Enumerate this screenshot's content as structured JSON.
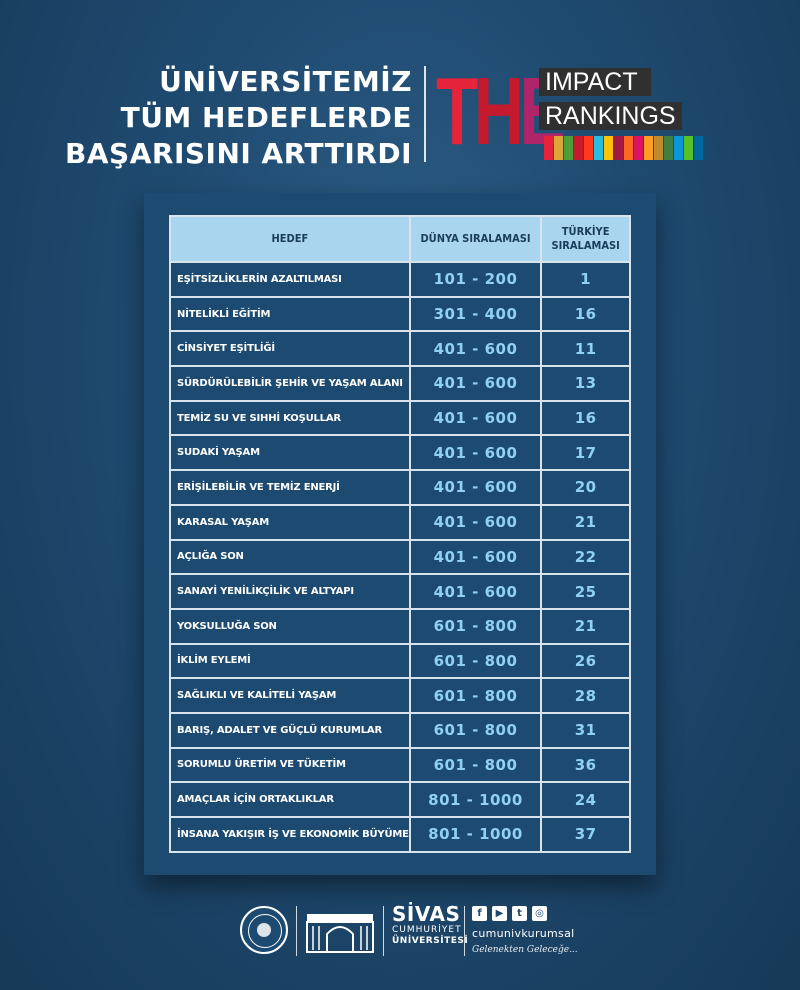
{
  "header": {
    "headline_lines": [
      "ÜNİVERSİTEMİZ",
      "TÜM HEDEFLERDE",
      "BAŞARISINI ARTTIRDI"
    ],
    "logo_letters": "THE",
    "logo_impact": "IMPACT",
    "logo_rankings": "RANKINGS",
    "sdg_colors": [
      "#e5243b",
      "#dda63a",
      "#4c9f38",
      "#c5192d",
      "#ff3a21",
      "#26bde2",
      "#fcc30b",
      "#a21942",
      "#fd6925",
      "#dd1367",
      "#fd9d24",
      "#bf8b2e",
      "#3f7e44",
      "#0a97d9",
      "#56c02b",
      "#00689d",
      "#19486a"
    ]
  },
  "table": {
    "headers": {
      "goal": "HEDEF",
      "world": "DÜNYA SIRALAMASI",
      "turkey": "TÜRKİYE SIRALAMASI"
    },
    "rows": [
      {
        "goal": "EŞİTSİZLİKLERİN AZALTILMASI",
        "world": "101 - 200",
        "turkey": "1"
      },
      {
        "goal": "NİTELİKLİ EĞİTİM",
        "world": "301 - 400",
        "turkey": "16"
      },
      {
        "goal": "CİNSİYET EŞİTLİĞİ",
        "world": "401 - 600",
        "turkey": "11"
      },
      {
        "goal": "SÜRDÜRÜLEBİLİR ŞEHİR VE YAŞAM ALANI",
        "world": "401 - 600",
        "turkey": "13"
      },
      {
        "goal": "TEMİZ SU VE SIHHİ KOŞULLAR",
        "world": "401 - 600",
        "turkey": "16"
      },
      {
        "goal": "SUDAKİ YAŞAM",
        "world": "401 - 600",
        "turkey": "17"
      },
      {
        "goal": "ERİŞİLEBİLİR VE TEMİZ ENERJİ",
        "world": "401 - 600",
        "turkey": "20"
      },
      {
        "goal": "KARASAL YAŞAM",
        "world": "401 - 600",
        "turkey": "21"
      },
      {
        "goal": "AÇLIĞA SON",
        "world": "401 - 600",
        "turkey": "22"
      },
      {
        "goal": "SANAYİ YENİLİKÇİLİK VE ALTYAPI",
        "world": "401 - 600",
        "turkey": "25"
      },
      {
        "goal": "YOKSULLUĞA SON",
        "world": "601 - 800",
        "turkey": "21"
      },
      {
        "goal": "İKLİM EYLEMİ",
        "world": "601 - 800",
        "turkey": "26"
      },
      {
        "goal": "SAĞLIKLI VE KALİTELİ YAŞAM",
        "world": "601 - 800",
        "turkey": "28"
      },
      {
        "goal": "BARIŞ, ADALET VE GÜÇLÜ KURUMLAR",
        "world": "601 - 800",
        "turkey": "31"
      },
      {
        "goal": "SORUMLU ÜRETİM VE TÜKETİM",
        "world": "601 - 800",
        "turkey": "36"
      },
      {
        "goal": "AMAÇLAR İÇİN ORTAKLIKLAR",
        "world": "801 - 1000",
        "turkey": "24"
      },
      {
        "goal": "İNSANA YAKIŞIR İŞ VE EKONOMİK BÜYÜME",
        "world": "801 - 1000",
        "turkey": "37"
      }
    ]
  },
  "footer": {
    "uni_sivas": "SİVAS",
    "uni_cumhuriyet": "CUMHURİYET",
    "uni_universitesi": "ÜNİVERSİTESİ",
    "social_icons": [
      "facebook-icon",
      "youtube-icon",
      "twitter-icon",
      "instagram-icon"
    ],
    "handle": "cumunivkurumsal",
    "slogan": "Gelenekten Geleceğe..."
  }
}
